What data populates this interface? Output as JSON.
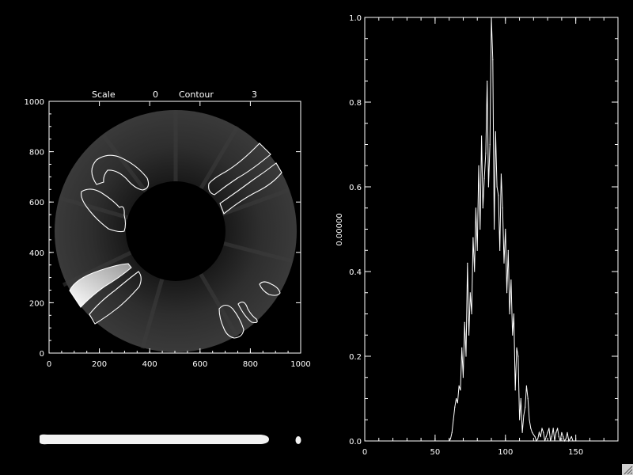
{
  "colors": {
    "background": "#000000",
    "foreground": "#ffffff"
  },
  "image_panel": {
    "header": {
      "scale_label": "Scale",
      "scale_value": "0",
      "contour_label": "Contour",
      "contour_value": "3"
    },
    "x_ticks": [
      "0",
      "200",
      "400",
      "600",
      "800",
      "1000"
    ],
    "y_ticks": [
      "0",
      "200",
      "400",
      "600",
      "800",
      "1000"
    ]
  },
  "chart_data": [
    {
      "type": "heatmap",
      "title": "",
      "xlabel": "",
      "ylabel": "",
      "xlim": [
        0,
        1000
      ],
      "ylim": [
        0,
        1000
      ],
      "annulus": {
        "center": [
          500,
          500
        ],
        "inner_radius": 200,
        "outer_radius": 475
      },
      "contour_level": 3,
      "bright_patch": {
        "x": [
          95,
          325
        ],
        "y": [
          235,
          355
        ]
      }
    },
    {
      "type": "line",
      "title": "",
      "xlabel": "",
      "ylabel": "0.00000",
      "xlim": [
        0,
        180
      ],
      "ylim": [
        0,
        1.0
      ],
      "x_ticks": [
        0,
        50,
        100,
        150
      ],
      "y_ticks": [
        0.0,
        0.2,
        0.4,
        0.6,
        0.8,
        1.0
      ],
      "x_tick_labels": [
        "0",
        "50",
        "100",
        "150"
      ],
      "y_tick_labels": [
        "0.0",
        "0.2",
        "0.4",
        "0.6",
        "0.8",
        "1.0"
      ],
      "x": [
        60,
        61,
        62,
        63,
        64,
        65,
        66,
        67,
        68,
        69,
        70,
        71,
        72,
        73,
        74,
        75,
        76,
        77,
        78,
        79,
        80,
        81,
        82,
        83,
        84,
        85,
        86,
        87,
        88,
        89,
        90,
        91,
        92,
        93,
        94,
        95,
        96,
        97,
        98,
        99,
        100,
        101,
        102,
        103,
        104,
        105,
        106,
        107,
        108,
        109,
        110,
        111,
        112,
        113,
        114,
        115,
        116,
        117,
        118,
        119,
        120,
        121,
        122,
        123,
        124,
        125,
        126,
        127,
        128,
        129,
        130,
        131,
        132,
        133,
        134,
        135,
        136,
        137,
        138,
        139,
        140,
        141,
        142,
        143,
        144,
        145,
        146,
        147,
        148,
        149,
        150
      ],
      "y": [
        0.0,
        0.005,
        0.02,
        0.05,
        0.08,
        0.1,
        0.09,
        0.13,
        0.12,
        0.22,
        0.15,
        0.28,
        0.2,
        0.42,
        0.25,
        0.35,
        0.3,
        0.48,
        0.4,
        0.55,
        0.45,
        0.65,
        0.5,
        0.72,
        0.55,
        0.62,
        0.68,
        0.85,
        0.6,
        0.7,
        1.0,
        0.9,
        0.5,
        0.73,
        0.6,
        0.58,
        0.45,
        0.63,
        0.55,
        0.42,
        0.5,
        0.35,
        0.45,
        0.3,
        0.38,
        0.25,
        0.3,
        0.12,
        0.22,
        0.2,
        0.05,
        0.1,
        0.02,
        0.06,
        0.08,
        0.13,
        0.1,
        0.05,
        0.03,
        0.02,
        0.015,
        0.01,
        0.0,
        0.005,
        0.02,
        0.01,
        0.03,
        0.02,
        0.0,
        0.01,
        0.02,
        0.03,
        0.0,
        0.01,
        0.03,
        0.0,
        0.02,
        0.03,
        0.01,
        0.0,
        0.02,
        0.01,
        0.0,
        0.005,
        0.02,
        0.0,
        0.005,
        0.01,
        0.0,
        0.0,
        0.0
      ]
    }
  ]
}
